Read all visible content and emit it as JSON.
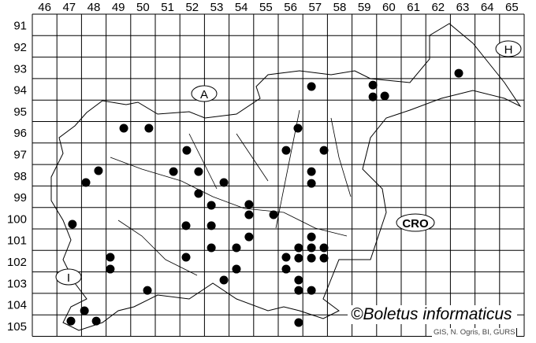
{
  "map": {
    "column_labels": [
      "46",
      "47",
      "48",
      "49",
      "50",
      "51",
      "52",
      "53",
      "54",
      "55",
      "56",
      "57",
      "58",
      "59",
      "60",
      "61",
      "62",
      "63",
      "64",
      "65"
    ],
    "row_labels": [
      "91",
      "92",
      "93",
      "94",
      "95",
      "96",
      "97",
      "98",
      "99",
      "100",
      "101",
      "102",
      "103",
      "104",
      "105"
    ],
    "country_labels": [
      "A",
      "H",
      "CRO",
      "I"
    ],
    "marker_color": "#000000",
    "occurrences": [
      [
        57.35,
        94.37
      ],
      [
        59.85,
        94.3
      ],
      [
        59.85,
        94.85
      ],
      [
        60.33,
        94.81
      ],
      [
        63.34,
        93.75
      ],
      [
        49.72,
        96.31
      ],
      [
        50.74,
        96.31
      ],
      [
        56.8,
        96.31
      ],
      [
        52.28,
        97.34
      ],
      [
        56.32,
        97.34
      ],
      [
        57.86,
        97.34
      ],
      [
        48.69,
        98.29
      ],
      [
        51.74,
        98.33
      ],
      [
        52.76,
        98.33
      ],
      [
        57.35,
        98.33
      ],
      [
        48.18,
        98.84
      ],
      [
        53.79,
        98.84
      ],
      [
        57.35,
        98.88
      ],
      [
        52.76,
        99.35
      ],
      [
        53.28,
        99.9
      ],
      [
        54.81,
        99.86
      ],
      [
        54.81,
        100.34
      ],
      [
        55.81,
        100.34
      ],
      [
        47.63,
        100.78
      ],
      [
        52.25,
        100.85
      ],
      [
        53.28,
        100.85
      ],
      [
        54.81,
        101.37
      ],
      [
        57.35,
        101.37
      ],
      [
        53.28,
        101.88
      ],
      [
        54.3,
        101.88
      ],
      [
        56.83,
        101.88
      ],
      [
        57.35,
        101.88
      ],
      [
        57.86,
        101.88
      ],
      [
        49.17,
        102.32
      ],
      [
        52.25,
        102.32
      ],
      [
        56.32,
        102.32
      ],
      [
        56.83,
        102.36
      ],
      [
        57.35,
        102.36
      ],
      [
        57.86,
        102.36
      ],
      [
        49.17,
        102.87
      ],
      [
        54.3,
        102.87
      ],
      [
        56.32,
        102.87
      ],
      [
        53.79,
        103.38
      ],
      [
        56.83,
        103.38
      ],
      [
        50.68,
        103.86
      ],
      [
        56.83,
        103.86
      ],
      [
        57.35,
        103.86
      ],
      [
        48.12,
        104.81
      ],
      [
        47.57,
        105.29
      ],
      [
        48.6,
        105.29
      ],
      [
        56.83,
        105.36
      ]
    ]
  },
  "credit": "©Boletus informaticus",
  "source": "GIS, N. Ogris, BI, GURS"
}
